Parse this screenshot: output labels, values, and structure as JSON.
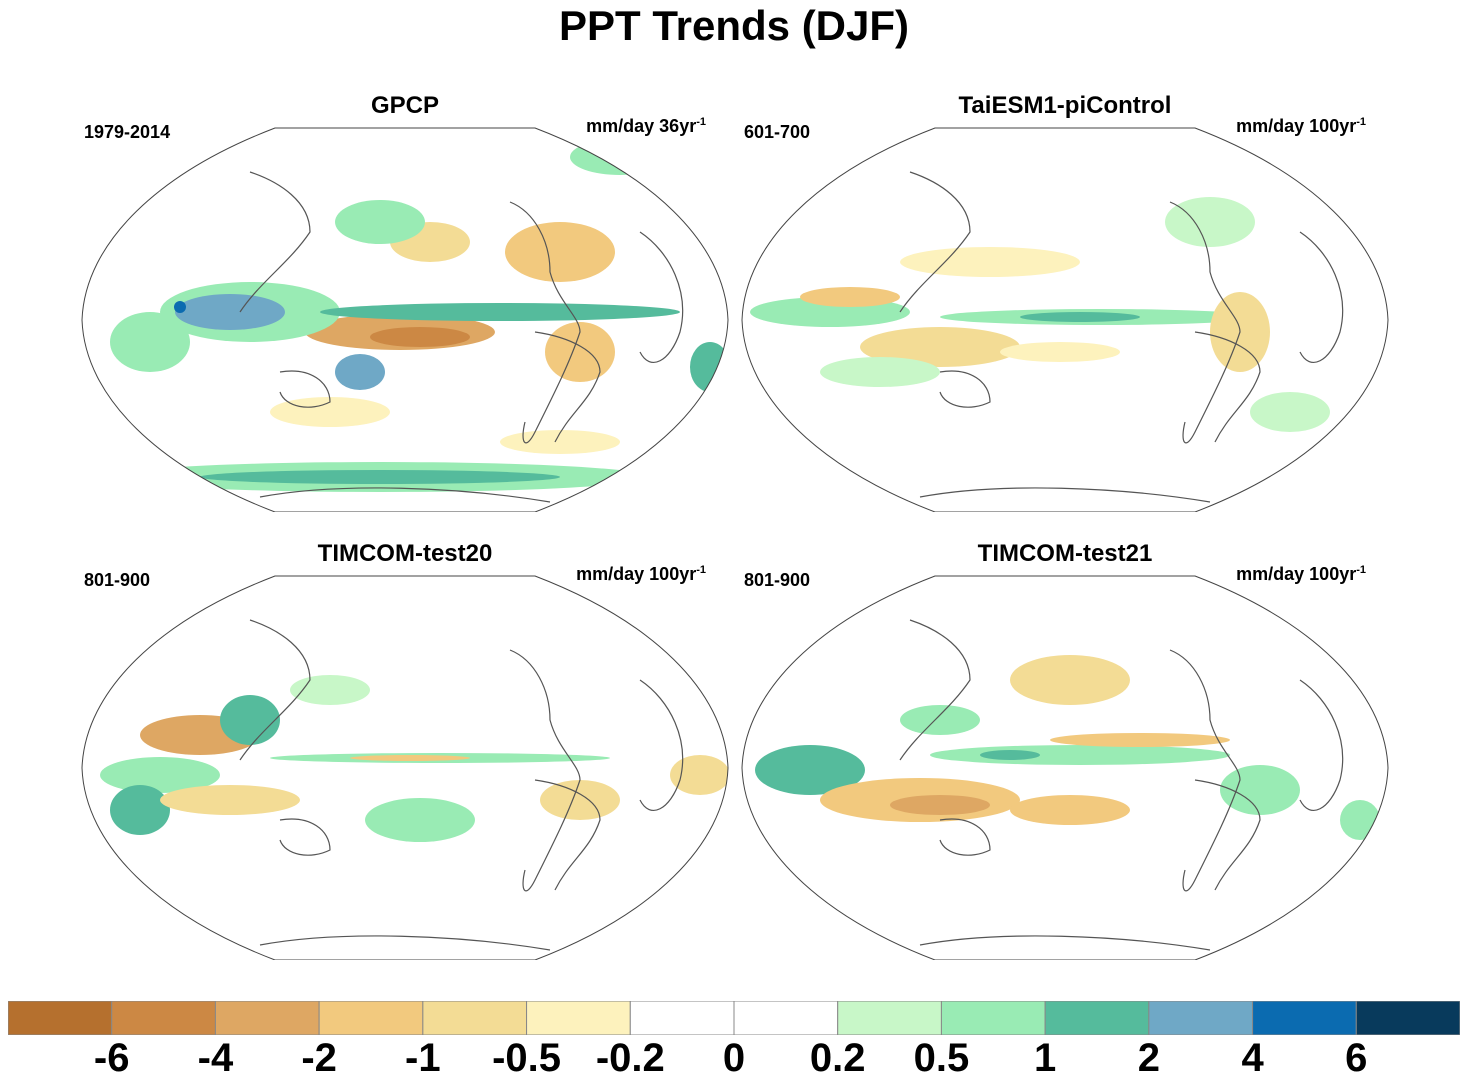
{
  "title": "PPT Trends (DJF)",
  "panels": [
    {
      "title": "GPCP",
      "period": "1979-2014",
      "units": "mm/day 36yr",
      "units_exp": "-1"
    },
    {
      "title": "TaiESM1-piControl",
      "period": "601-700",
      "units": "mm/day 100yr",
      "units_exp": "-1"
    },
    {
      "title": "TIMCOM-test20",
      "period": "801-900",
      "units": "mm/day 100yr",
      "units_exp": "-1"
    },
    {
      "title": "TIMCOM-test21",
      "period": "801-900",
      "units": "mm/day 100yr",
      "units_exp": "-1"
    }
  ],
  "chart_data": {
    "type": "heatmap",
    "title": "PPT Trends (DJF)",
    "projection": "global map",
    "colorbar": {
      "levels": [
        "-6",
        "-4",
        "-2",
        "-1",
        "-0.5",
        "-0.2",
        "0",
        "0.2",
        "0.5",
        "1",
        "2",
        "4",
        "6"
      ],
      "colors": [
        "#b5702e",
        "#cc8844",
        "#dea763",
        "#f2c97e",
        "#f3dc95",
        "#fdf2bd",
        "#ffffff",
        "#ffffff",
        "#c8f7c8",
        "#99ebb4",
        "#55bb9c",
        "#6fa8c6",
        "#0b6bb0",
        "#083a5c"
      ]
    }
  }
}
